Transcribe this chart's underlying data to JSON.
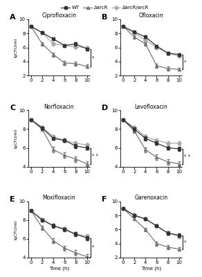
{
  "legend_labels": [
    "WT",
    "ΔarcR",
    "ΔarcR/arcR"
  ],
  "time_points": [
    0,
    2,
    4,
    6,
    8,
    10
  ],
  "panels": [
    {
      "label": "A",
      "drug": "Ciprofloxacin",
      "wt": [
        9.0,
        8.1,
        7.2,
        6.3,
        6.5,
        5.8
      ],
      "mut": [
        9.0,
        6.5,
        5.0,
        3.8,
        3.7,
        3.3
      ],
      "comp": [
        9.0,
        8.1,
        6.5,
        6.3,
        6.1,
        6.0
      ],
      "wt_err": [
        0.05,
        0.15,
        0.2,
        0.18,
        0.2,
        0.2
      ],
      "mut_err": [
        0.05,
        0.25,
        0.28,
        0.3,
        0.28,
        0.25
      ],
      "comp_err": [
        0.05,
        0.15,
        0.2,
        0.18,
        0.18,
        0.18
      ],
      "ylim": [
        2,
        10
      ],
      "yticks": [
        2,
        4,
        6,
        8,
        10
      ],
      "sig": "*"
    },
    {
      "label": "B",
      "drug": "Ofloxacin",
      "wt": [
        9.0,
        8.2,
        7.5,
        6.2,
        5.2,
        5.0
      ],
      "mut": [
        9.0,
        7.5,
        6.5,
        3.4,
        3.0,
        2.9
      ],
      "comp": [
        9.0,
        8.1,
        7.0,
        6.0,
        5.2,
        4.8
      ],
      "wt_err": [
        0.05,
        0.15,
        0.2,
        0.2,
        0.2,
        0.2
      ],
      "mut_err": [
        0.05,
        0.22,
        0.25,
        0.28,
        0.25,
        0.22
      ],
      "comp_err": [
        0.05,
        0.15,
        0.2,
        0.2,
        0.18,
        0.18
      ],
      "ylim": [
        2,
        10
      ],
      "yticks": [
        2,
        4,
        6,
        8,
        10
      ],
      "sig": "*"
    },
    {
      "label": "C",
      "drug": "Norfloxacin",
      "wt": [
        9.0,
        8.1,
        7.0,
        6.8,
        6.2,
        6.0
      ],
      "mut": [
        9.0,
        8.0,
        5.8,
        5.2,
        4.8,
        4.3
      ],
      "comp": [
        9.0,
        8.2,
        7.2,
        6.8,
        6.5,
        6.3
      ],
      "wt_err": [
        0.05,
        0.15,
        0.18,
        0.2,
        0.2,
        0.2
      ],
      "mut_err": [
        0.05,
        0.18,
        0.28,
        0.3,
        0.28,
        0.25
      ],
      "comp_err": [
        0.05,
        0.15,
        0.18,
        0.18,
        0.2,
        0.2
      ],
      "ylim": [
        4,
        10
      ],
      "yticks": [
        4,
        6,
        8,
        10
      ],
      "sig": "* *"
    },
    {
      "label": "D",
      "drug": "Levofloxacin",
      "wt": [
        9.0,
        8.0,
        7.0,
        6.5,
        6.0,
        5.9
      ],
      "mut": [
        9.0,
        7.8,
        5.8,
        5.0,
        4.5,
        4.3
      ],
      "comp": [
        9.0,
        8.2,
        7.2,
        6.8,
        6.5,
        6.5
      ],
      "wt_err": [
        0.05,
        0.15,
        0.2,
        0.2,
        0.22,
        0.22
      ],
      "mut_err": [
        0.05,
        0.2,
        0.25,
        0.28,
        0.28,
        0.25
      ],
      "comp_err": [
        0.05,
        0.15,
        0.18,
        0.18,
        0.2,
        0.2
      ],
      "ylim": [
        4,
        10
      ],
      "yticks": [
        4,
        6,
        8,
        10
      ],
      "sig": "* *"
    },
    {
      "label": "E",
      "drug": "Moxifloxacin",
      "wt": [
        9.0,
        8.0,
        7.4,
        7.0,
        6.5,
        6.1
      ],
      "mut": [
        9.0,
        7.2,
        5.8,
        5.0,
        4.5,
        4.1
      ],
      "comp": [
        9.0,
        8.1,
        7.4,
        7.1,
        6.5,
        6.3
      ],
      "wt_err": [
        0.05,
        0.15,
        0.2,
        0.2,
        0.22,
        0.22
      ],
      "mut_err": [
        0.05,
        0.22,
        0.28,
        0.28,
        0.28,
        0.25
      ],
      "comp_err": [
        0.05,
        0.15,
        0.18,
        0.18,
        0.2,
        0.2
      ],
      "ylim": [
        4,
        10
      ],
      "yticks": [
        4,
        6,
        8,
        10
      ],
      "sig": "*"
    },
    {
      "label": "F",
      "drug": "Garenoxacin",
      "wt": [
        9.0,
        8.0,
        7.5,
        6.5,
        5.5,
        5.2
      ],
      "mut": [
        9.0,
        7.5,
        6.0,
        4.0,
        3.5,
        3.2
      ],
      "comp": [
        9.0,
        8.1,
        7.5,
        6.5,
        5.5,
        5.0
      ],
      "wt_err": [
        0.05,
        0.15,
        0.2,
        0.2,
        0.22,
        0.22
      ],
      "mut_err": [
        0.05,
        0.22,
        0.25,
        0.28,
        0.28,
        0.25
      ],
      "comp_err": [
        0.05,
        0.15,
        0.18,
        0.18,
        0.2,
        0.2
      ],
      "ylim": [
        2,
        10
      ],
      "yticks": [
        2,
        4,
        6,
        8,
        10
      ],
      "sig": "*"
    }
  ],
  "line_colors": [
    "#333333",
    "#777777",
    "#aaaaaa"
  ],
  "markers": [
    "s",
    "^",
    "D"
  ],
  "marker_size": 3.0,
  "line_width": 0.9,
  "ylabel": "lgCFU/ml",
  "xlabel": "Time (h)",
  "xticks": [
    0,
    2,
    4,
    6,
    8,
    10
  ]
}
